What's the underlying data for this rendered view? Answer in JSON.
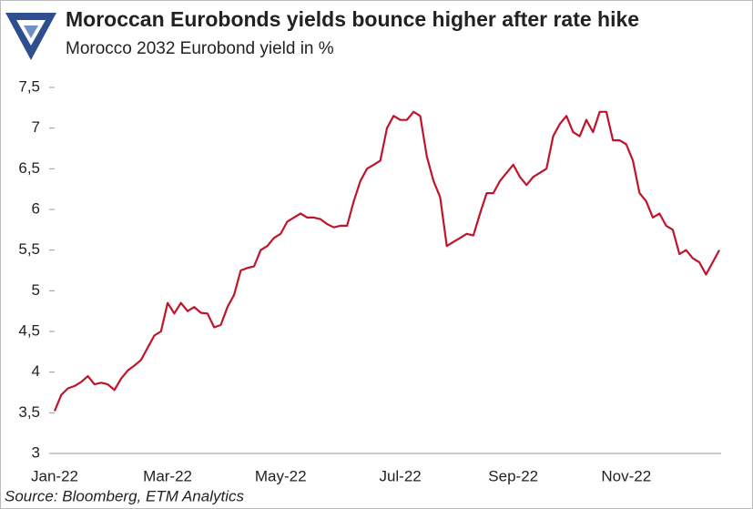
{
  "chart_data": {
    "type": "line",
    "title": "Moroccan Eurobonds yields bounce higher after rate hike",
    "subtitle": "Morocco 2032 Eurobond yield in %",
    "source": "Source: Bloomberg, ETM Analytics",
    "categories": [
      "Jan-22",
      null,
      null,
      null,
      null,
      null,
      null,
      null,
      null,
      null,
      null,
      null,
      null,
      null,
      null,
      null,
      null,
      "Mar-22",
      null,
      null,
      null,
      null,
      null,
      null,
      null,
      null,
      null,
      null,
      null,
      null,
      null,
      null,
      null,
      null,
      "May-22",
      null,
      null,
      null,
      null,
      null,
      null,
      null,
      null,
      null,
      null,
      null,
      null,
      null,
      null,
      null,
      null,
      null,
      "Jul-22",
      null,
      null,
      null,
      null,
      null,
      null,
      null,
      null,
      null,
      null,
      null,
      null,
      null,
      null,
      null,
      null,
      "Sep-22",
      null,
      null,
      null,
      null,
      null,
      null,
      null,
      null,
      null,
      null,
      null,
      null,
      null,
      null,
      null,
      null,
      "Nov-22",
      null,
      null,
      null,
      null,
      null,
      null,
      null,
      null,
      null,
      null,
      null,
      null,
      null,
      null
    ],
    "series": [
      {
        "name": "Morocco 2032 Eurobond yield",
        "color": "#c0142c",
        "values": [
          3.52,
          3.72,
          3.8,
          3.83,
          3.88,
          3.95,
          3.85,
          3.87,
          3.85,
          3.78,
          3.92,
          4.02,
          4.08,
          4.15,
          4.3,
          4.45,
          4.5,
          4.85,
          4.72,
          4.85,
          4.75,
          4.8,
          4.73,
          4.72,
          4.55,
          4.58,
          4.8,
          4.95,
          5.25,
          5.28,
          5.3,
          5.5,
          5.55,
          5.65,
          5.7,
          5.85,
          5.9,
          5.95,
          5.9,
          5.9,
          5.88,
          5.82,
          5.78,
          5.8,
          5.8,
          6.1,
          6.35,
          6.5,
          6.55,
          6.6,
          7.0,
          7.15,
          7.1,
          7.1,
          7.2,
          7.15,
          6.65,
          6.35,
          6.15,
          5.55,
          5.6,
          5.65,
          5.7,
          5.68,
          5.95,
          6.2,
          6.2,
          6.35,
          6.45,
          6.55,
          6.4,
          6.3,
          6.4,
          6.45,
          6.5,
          6.9,
          7.05,
          7.15,
          6.95,
          6.9,
          7.1,
          6.95,
          7.2,
          7.2,
          6.85,
          6.85,
          6.8,
          6.6,
          6.2,
          6.1,
          5.9,
          5.95,
          5.8,
          5.75,
          5.45,
          5.5,
          5.4,
          5.35,
          5.2,
          5.35,
          5.5
        ]
      }
    ],
    "ylim": [
      3,
      7.5
    ],
    "yticks": [
      3,
      {
        "value": 3.5,
        "label": "3,5"
      },
      4,
      {
        "value": 4.5,
        "label": "4,5"
      },
      5,
      {
        "value": 5.5,
        "label": "5,5"
      },
      6,
      {
        "value": 6.5,
        "label": "6,5"
      },
      7,
      {
        "value": 7.5,
        "label": "7,5"
      }
    ],
    "grid": false
  }
}
